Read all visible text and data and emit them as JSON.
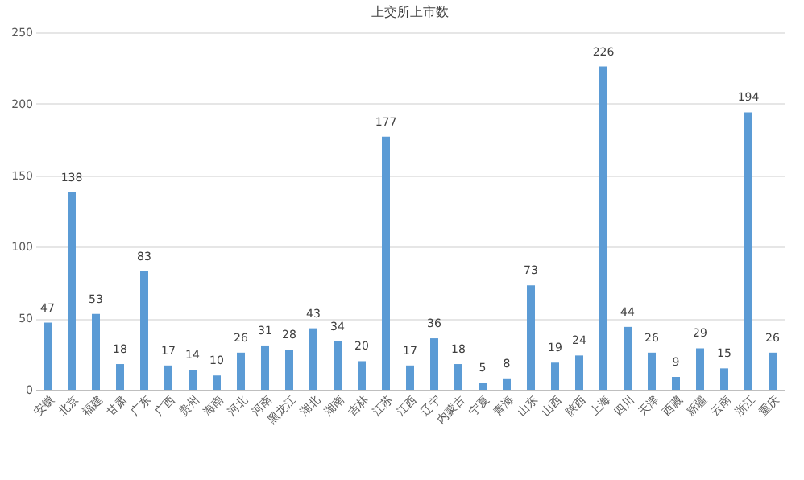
{
  "chart_data": {
    "type": "bar",
    "title": "上交所上市数",
    "categories": [
      "安徽",
      "北京",
      "福建",
      "甘肃",
      "广东",
      "广西",
      "贵州",
      "海南",
      "河北",
      "河南",
      "黑龙江",
      "湖北",
      "湖南",
      "吉林",
      "江苏",
      "江西",
      "辽宁",
      "内蒙古",
      "宁夏",
      "青海",
      "山东",
      "山西",
      "陕西",
      "上海",
      "四川",
      "天津",
      "西藏",
      "新疆",
      "云南",
      "浙江",
      "重庆"
    ],
    "values": [
      47,
      138,
      53,
      18,
      83,
      17,
      14,
      10,
      26,
      31,
      28,
      43,
      34,
      20,
      177,
      17,
      36,
      18,
      5,
      8,
      73,
      19,
      24,
      226,
      44,
      26,
      9,
      29,
      15,
      194,
      26
    ],
    "color": "#5b9bd5",
    "ylim": [
      0,
      250
    ],
    "yticks": [
      0,
      50,
      100,
      150,
      200,
      250
    ],
    "grid": "y",
    "data_labels": true
  }
}
